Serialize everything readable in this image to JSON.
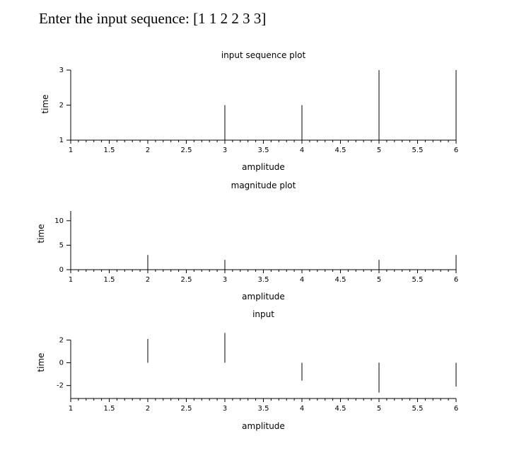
{
  "prompt_text": "Enter the input sequence: [1 1 2 2 3 3]",
  "chart_data": [
    {
      "type": "stem",
      "title": "input sequence plot",
      "xlabel": "amplitude",
      "ylabel": "time",
      "x": [
        1,
        2,
        3,
        4,
        5,
        6
      ],
      "y": [
        1,
        1,
        2,
        2,
        3,
        3
      ],
      "xlim": [
        1,
        6
      ],
      "ylim": [
        1,
        3
      ],
      "xticks": [
        "1",
        "1.5",
        "2",
        "2.5",
        "3",
        "3.5",
        "4",
        "4.5",
        "5",
        "5.5",
        "6"
      ],
      "yticks": [
        "1",
        "2",
        "3"
      ]
    },
    {
      "type": "stem",
      "title": "magnitude plot",
      "xlabel": "amplitude",
      "ylabel": "time",
      "x": [
        1,
        2,
        3,
        4,
        5,
        6
      ],
      "y": [
        12,
        3,
        2,
        0,
        2,
        3
      ],
      "xlim": [
        1,
        6
      ],
      "ylim": [
        0,
        12
      ],
      "xticks": [
        "1",
        "1.5",
        "2",
        "2.5",
        "3",
        "3.5",
        "4",
        "4.5",
        "5",
        "5.5",
        "6"
      ],
      "yticks": [
        "0",
        "5",
        "10"
      ]
    },
    {
      "type": "stem",
      "title": "input",
      "xlabel": "amplitude",
      "ylabel": "time",
      "x": [
        1,
        2,
        3,
        4,
        5,
        6
      ],
      "y": [
        -3.14,
        2.09,
        2.62,
        -1.57,
        -2.62,
        -2.09
      ],
      "xlim": [
        1,
        6
      ],
      "ylim": [
        -3.14,
        3.14
      ],
      "xticks": [
        "1",
        "1.5",
        "2",
        "2.5",
        "3",
        "3.5",
        "4",
        "4.5",
        "5",
        "5.5",
        "6"
      ],
      "yticks": [
        "-2",
        "0",
        "2"
      ]
    }
  ]
}
